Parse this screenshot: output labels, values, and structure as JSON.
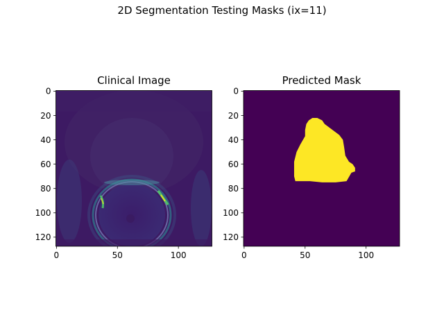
{
  "figure": {
    "suptitle": "2D Segmentation Testing Masks (ix=11)"
  },
  "chart_data": [
    {
      "type": "heatmap",
      "title": "Clinical Image",
      "xlabel": "",
      "ylabel": "",
      "xlim": [
        -0.5,
        127.5
      ],
      "ylim": [
        127.5,
        -0.5
      ],
      "x_ticks": [
        0,
        50,
        100
      ],
      "y_ticks": [
        0,
        20,
        40,
        60,
        80,
        100,
        120
      ],
      "colormap": "viridis",
      "grid": false,
      "content": "grayscale MRI slice (prostate) rendered with viridis colormap",
      "colors": {
        "low": "#440154",
        "mid": "#21918c",
        "high": "#fde725"
      }
    },
    {
      "type": "heatmap",
      "title": "Predicted Mask",
      "xlabel": "",
      "ylabel": "",
      "xlim": [
        -0.5,
        127.5
      ],
      "ylim": [
        127.5,
        -0.5
      ],
      "x_ticks": [
        0,
        50,
        100
      ],
      "y_ticks": [
        0,
        20,
        40,
        60,
        80,
        100,
        120
      ],
      "colormap": "viridis",
      "grid": false,
      "mask_outline": [
        [
          53,
          24
        ],
        [
          56,
          22
        ],
        [
          60,
          22
        ],
        [
          64,
          24
        ],
        [
          66,
          27
        ],
        [
          70,
          30
        ],
        [
          74,
          33
        ],
        [
          78,
          36
        ],
        [
          81,
          40
        ],
        [
          82,
          46
        ],
        [
          83,
          53
        ],
        [
          86,
          58
        ],
        [
          89,
          60
        ],
        [
          91,
          63
        ],
        [
          91,
          66
        ],
        [
          88,
          67
        ],
        [
          84,
          74
        ],
        [
          75,
          75
        ],
        [
          64,
          75
        ],
        [
          54,
          74
        ],
        [
          42,
          74
        ],
        [
          41,
          70
        ],
        [
          41,
          58
        ],
        [
          43,
          50
        ],
        [
          46,
          44
        ],
        [
          50,
          37
        ],
        [
          50,
          32
        ],
        [
          51,
          27
        ]
      ],
      "colors": {
        "background": "#440154",
        "foreground": "#fde725"
      }
    }
  ]
}
